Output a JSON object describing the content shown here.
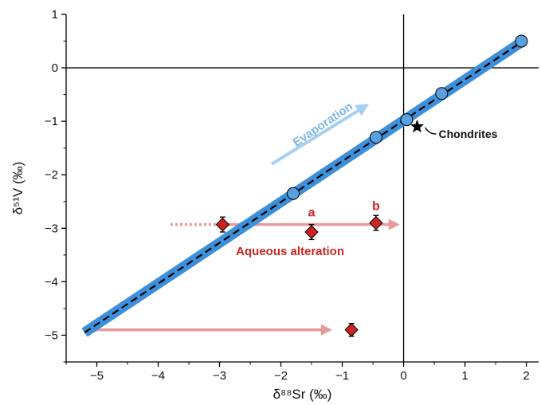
{
  "chart_data": {
    "type": "scatter",
    "xlabel": "δ⁸⁸Sr (‰)",
    "ylabel": "δ⁵¹V (‰)",
    "xlim": [
      -5.5,
      2.2
    ],
    "ylim": [
      -5.5,
      1.0
    ],
    "x_ticks": [
      -5,
      -4,
      -3,
      -2,
      -1,
      0,
      1,
      2
    ],
    "y_ticks": [
      -5,
      -4,
      -3,
      -2,
      -1,
      0,
      1
    ],
    "x_tick_labels": [
      "−5",
      "−4",
      "−3",
      "−2",
      "−1",
      "0",
      "1",
      "2"
    ],
    "y_tick_labels": [
      "−5",
      "−4",
      "−3",
      "−2",
      "−1",
      "0",
      "1"
    ],
    "grid": false,
    "reference_lines": {
      "x": 0,
      "y": 0
    },
    "trend_line": {
      "x": [
        -5.2,
        1.92
      ],
      "y": [
        -4.95,
        0.48
      ],
      "style": "dashed",
      "band_color": "#3c8fd8"
    },
    "series": [
      {
        "name": "",
        "marker": "circle",
        "color": "#5a9fe0",
        "x": [
          1.92,
          0.62,
          0.05,
          -0.45,
          -1.8
        ],
        "y": [
          0.5,
          -0.48,
          -0.97,
          -1.3,
          -2.35
        ],
        "y_err": [
          0.1,
          0.1,
          0.1,
          0.1,
          0.1
        ]
      },
      {
        "name": "",
        "marker": "diamond",
        "color": "#cc2222",
        "x": [
          -2.95,
          -1.5,
          -0.45,
          -0.85
        ],
        "y": [
          -2.93,
          -3.07,
          -2.9,
          -4.9
        ],
        "y_err": [
          0.14,
          0.14,
          0.14,
          0.12
        ]
      }
    ],
    "chondrites": {
      "x": 0.22,
      "y": -1.1,
      "marker": "star"
    },
    "arrows": [
      {
        "x_start": -3.8,
        "dotted_to": -3.0,
        "x_end": -0.1,
        "y": -2.93,
        "color": "#e89a9a"
      },
      {
        "x_start": -5.2,
        "x_end": -1.2,
        "y": -4.9,
        "color": "#e89a9a"
      },
      {
        "x_start": -2.15,
        "y_start": -1.8,
        "x_end": -0.6,
        "y_end": -0.7,
        "color": "#a7cff0"
      }
    ],
    "annotations": {
      "evaporation": "Evaporation",
      "chondrites": "Chondrites",
      "aqueous_alteration": "Aqueous alteration",
      "label_a": "a",
      "label_b": "b"
    }
  }
}
